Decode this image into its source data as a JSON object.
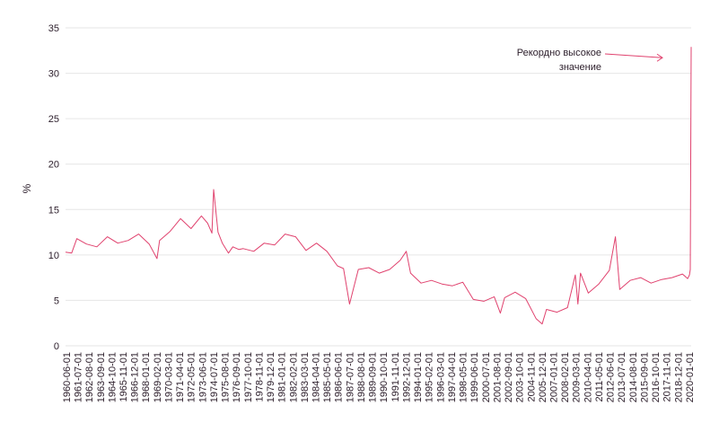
{
  "chart_data": {
    "type": "line",
    "title": "",
    "xlabel": "",
    "ylabel": "%",
    "ylim": [
      0,
      35
    ],
    "yticks": [
      0,
      5,
      10,
      15,
      20,
      25,
      30,
      35
    ],
    "grid": "horizontal",
    "colors": {
      "line": "#e0426e",
      "grid": "#e6e6e6",
      "text": "#2b1d2a"
    },
    "xtick_labels": [
      "1960-06-01",
      "1961-07-01",
      "1962-08-01",
      "1963-09-01",
      "1964-10-01",
      "1965-11-01",
      "1966-12-01",
      "1968-01-01",
      "1969-02-01",
      "1970-03-01",
      "1971-04-01",
      "1972-05-01",
      "1973-06-01",
      "1974-07-01",
      "1975-08-01",
      "1976-09-01",
      "1977-10-01",
      "1978-11-01",
      "1979-12-01",
      "1981-01-01",
      "1982-02-01",
      "1983-03-01",
      "1984-04-01",
      "1985-05-01",
      "1986-06-01",
      "1987-07-01",
      "1988-08-01",
      "1989-09-01",
      "1990-10-01",
      "1991-11-01",
      "1992-12-01",
      "1994-01-01",
      "1995-02-01",
      "1996-03-01",
      "1997-04-01",
      "1998-05-01",
      "1999-06-01",
      "2000-07-01",
      "2001-08-01",
      "2002-09-01",
      "2003-10-01",
      "2004-11-01",
      "2005-12-01",
      "2007-01-01",
      "2008-02-01",
      "2009-03-01",
      "2010-04-01",
      "2011-05-01",
      "2012-06-01",
      "2013-07-01",
      "2014-08-01",
      "2015-09-01",
      "2016-10-01",
      "2017-11-01",
      "2018-12-01",
      "2020-01-01"
    ],
    "series": [
      {
        "x": [
          "1960-06-01",
          "1961-01-01",
          "1961-07-01",
          "1962-06-01",
          "1963-06-01",
          "1964-06-01",
          "1965-06-01",
          "1966-06-01",
          "1967-06-01",
          "1968-06-01",
          "1969-03-01",
          "1969-06-01",
          "1970-06-01",
          "1971-06-01",
          "1972-06-01",
          "1973-06-01",
          "1974-01-01",
          "1974-06-01",
          "1974-08-01",
          "1975-01-01",
          "1975-06-01",
          "1976-01-01",
          "1976-06-01",
          "1977-01-01",
          "1977-06-01",
          "1978-06-01",
          "1979-06-01",
          "1980-06-01",
          "1981-06-01",
          "1982-06-01",
          "1983-06-01",
          "1984-06-01",
          "1985-06-01",
          "1986-06-01",
          "1987-01-01",
          "1987-08-01",
          "1988-06-01",
          "1989-06-01",
          "1990-06-01",
          "1991-06-01",
          "1992-06-01",
          "1993-01-01",
          "1993-06-01",
          "1994-06-01",
          "1995-06-01",
          "1996-06-01",
          "1997-06-01",
          "1998-06-01",
          "1999-06-01",
          "2000-06-01",
          "2001-06-01",
          "2002-01-01",
          "2002-06-01",
          "2003-06-01",
          "2004-06-01",
          "2005-06-01",
          "2006-01-01",
          "2006-06-01",
          "2007-06-01",
          "2008-06-01",
          "2009-03-01",
          "2009-06-01",
          "2009-09-01",
          "2010-06-01",
          "2011-06-01",
          "2012-06-01",
          "2013-01-01",
          "2013-06-01",
          "2014-06-01",
          "2015-06-01",
          "2016-06-01",
          "2017-06-01",
          "2018-06-01",
          "2019-06-01",
          "2019-12-01",
          "2020-02-01",
          "2020-03-01",
          "2020-04-01"
        ],
        "values": [
          10.3,
          10.2,
          11.8,
          11.2,
          10.9,
          12.0,
          11.3,
          11.6,
          12.3,
          11.2,
          9.6,
          11.6,
          12.6,
          14.0,
          12.9,
          14.3,
          13.5,
          12.4,
          17.2,
          12.5,
          11.3,
          10.2,
          10.9,
          10.6,
          10.7,
          10.4,
          11.3,
          11.1,
          12.3,
          12.0,
          10.5,
          11.3,
          10.4,
          8.8,
          8.5,
          4.6,
          8.4,
          8.6,
          8.0,
          8.4,
          9.4,
          10.4,
          8.0,
          6.9,
          7.2,
          6.8,
          6.6,
          7.0,
          5.1,
          4.9,
          5.4,
          3.6,
          5.3,
          5.9,
          5.2,
          3.0,
          2.4,
          4.0,
          3.7,
          4.2,
          7.8,
          4.6,
          8.0,
          5.8,
          6.8,
          8.3,
          12.0,
          6.2,
          7.2,
          7.5,
          6.9,
          7.3,
          7.5,
          7.9,
          7.4,
          7.8,
          8.4,
          32.9
        ]
      }
    ]
  },
  "annotation": {
    "lines": [
      "Рекордно высокое",
      "значение"
    ],
    "points_to": {
      "x": "2020-04-01",
      "y": 32.9
    }
  }
}
